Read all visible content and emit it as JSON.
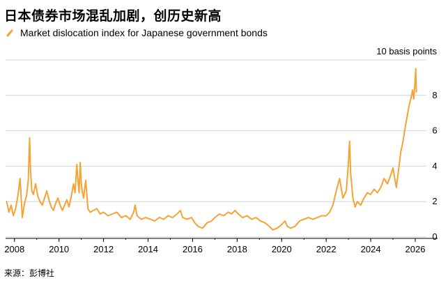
{
  "title": "日本债券市场混乱加剧，创历史新高",
  "legend": {
    "label": "Market dislocation index for Japanese government bonds",
    "color": "#f7a234"
  },
  "unit_label": "10 basis points",
  "source": "来源：彭博社",
  "chart_data": {
    "type": "line",
    "title": "日本债券市场混乱加剧，创历史新高",
    "xlabel": "",
    "ylabel": "10 basis points",
    "xlim": [
      2007.6,
      2026.5
    ],
    "ylim": [
      0,
      10
    ],
    "x_ticks": [
      "2008",
      "2010",
      "2012",
      "2014",
      "2016",
      "2018",
      "2020",
      "2022",
      "2024",
      "2026"
    ],
    "y_ticks": [
      "0",
      "2",
      "4",
      "6",
      "8"
    ],
    "grid": "horizontal",
    "series": [
      {
        "name": "Market dislocation index for Japanese government bonds",
        "color": "#f7a234",
        "points": [
          [
            2007.65,
            2.0
          ],
          [
            2007.75,
            1.4
          ],
          [
            2007.85,
            1.8
          ],
          [
            2007.95,
            1.2
          ],
          [
            2008.05,
            1.6
          ],
          [
            2008.15,
            2.3
          ],
          [
            2008.25,
            3.3
          ],
          [
            2008.35,
            1.1
          ],
          [
            2008.45,
            1.9
          ],
          [
            2008.55,
            2.4
          ],
          [
            2008.62,
            3.2
          ],
          [
            2008.68,
            5.6
          ],
          [
            2008.72,
            3.8
          ],
          [
            2008.78,
            2.6
          ],
          [
            2008.85,
            2.4
          ],
          [
            2008.95,
            3.0
          ],
          [
            2009.05,
            2.3
          ],
          [
            2009.15,
            2.0
          ],
          [
            2009.25,
            1.8
          ],
          [
            2009.35,
            2.2
          ],
          [
            2009.45,
            2.6
          ],
          [
            2009.55,
            2.1
          ],
          [
            2009.65,
            1.7
          ],
          [
            2009.75,
            1.5
          ],
          [
            2009.85,
            1.9
          ],
          [
            2009.95,
            2.2
          ],
          [
            2010.05,
            1.8
          ],
          [
            2010.15,
            1.5
          ],
          [
            2010.25,
            1.8
          ],
          [
            2010.35,
            2.1
          ],
          [
            2010.45,
            1.7
          ],
          [
            2010.55,
            2.3
          ],
          [
            2010.65,
            3.0
          ],
          [
            2010.72,
            2.5
          ],
          [
            2010.8,
            4.1
          ],
          [
            2010.85,
            3.2
          ],
          [
            2010.9,
            2.5
          ],
          [
            2010.95,
            4.2
          ],
          [
            2011.0,
            3.0
          ],
          [
            2011.05,
            2.5
          ],
          [
            2011.1,
            2.2
          ],
          [
            2011.2,
            3.2
          ],
          [
            2011.3,
            1.6
          ],
          [
            2011.4,
            1.4
          ],
          [
            2011.55,
            1.5
          ],
          [
            2011.7,
            1.6
          ],
          [
            2011.85,
            1.3
          ],
          [
            2012.0,
            1.4
          ],
          [
            2012.2,
            1.2
          ],
          [
            2012.4,
            1.3
          ],
          [
            2012.6,
            1.4
          ],
          [
            2012.8,
            1.1
          ],
          [
            2013.0,
            1.2
          ],
          [
            2013.2,
            1.0
          ],
          [
            2013.35,
            1.4
          ],
          [
            2013.42,
            1.8
          ],
          [
            2013.5,
            1.2
          ],
          [
            2013.7,
            1.0
          ],
          [
            2013.9,
            1.1
          ],
          [
            2014.1,
            1.0
          ],
          [
            2014.3,
            0.9
          ],
          [
            2014.5,
            1.1
          ],
          [
            2014.7,
            1.0
          ],
          [
            2014.9,
            1.2
          ],
          [
            2015.1,
            1.1
          ],
          [
            2015.3,
            1.3
          ],
          [
            2015.45,
            1.5
          ],
          [
            2015.55,
            1.1
          ],
          [
            2015.75,
            1.0
          ],
          [
            2015.95,
            1.1
          ],
          [
            2016.1,
            0.8
          ],
          [
            2016.25,
            0.6
          ],
          [
            2016.45,
            0.5
          ],
          [
            2016.65,
            0.8
          ],
          [
            2016.85,
            0.9
          ],
          [
            2017.0,
            1.1
          ],
          [
            2017.2,
            1.3
          ],
          [
            2017.4,
            1.2
          ],
          [
            2017.6,
            1.4
          ],
          [
            2017.75,
            1.3
          ],
          [
            2017.9,
            1.5
          ],
          [
            2018.05,
            1.3
          ],
          [
            2018.25,
            1.1
          ],
          [
            2018.45,
            1.2
          ],
          [
            2018.65,
            1.0
          ],
          [
            2018.85,
            1.1
          ],
          [
            2019.05,
            0.9
          ],
          [
            2019.25,
            0.8
          ],
          [
            2019.45,
            0.6
          ],
          [
            2019.6,
            0.4
          ],
          [
            2019.8,
            0.5
          ],
          [
            2020.0,
            0.7
          ],
          [
            2020.15,
            0.9
          ],
          [
            2020.25,
            0.6
          ],
          [
            2020.4,
            0.5
          ],
          [
            2020.6,
            0.6
          ],
          [
            2020.8,
            0.9
          ],
          [
            2021.0,
            1.0
          ],
          [
            2021.2,
            1.1
          ],
          [
            2021.4,
            1.0
          ],
          [
            2021.6,
            1.1
          ],
          [
            2021.8,
            1.2
          ],
          [
            2022.0,
            1.2
          ],
          [
            2022.15,
            1.4
          ],
          [
            2022.3,
            1.8
          ],
          [
            2022.45,
            2.6
          ],
          [
            2022.6,
            3.3
          ],
          [
            2022.75,
            2.2
          ],
          [
            2022.9,
            2.6
          ],
          [
            2023.0,
            4.2
          ],
          [
            2023.05,
            5.4
          ],
          [
            2023.1,
            3.6
          ],
          [
            2023.2,
            2.2
          ],
          [
            2023.3,
            1.7
          ],
          [
            2023.4,
            2.0
          ],
          [
            2023.55,
            1.8
          ],
          [
            2023.7,
            2.2
          ],
          [
            2023.85,
            2.5
          ],
          [
            2024.0,
            2.4
          ],
          [
            2024.15,
            2.7
          ],
          [
            2024.3,
            2.5
          ],
          [
            2024.45,
            2.8
          ],
          [
            2024.6,
            3.3
          ],
          [
            2024.75,
            3.0
          ],
          [
            2024.9,
            3.5
          ],
          [
            2025.0,
            3.9
          ],
          [
            2025.08,
            3.3
          ],
          [
            2025.15,
            2.8
          ],
          [
            2025.25,
            3.8
          ],
          [
            2025.35,
            4.8
          ],
          [
            2025.45,
            5.4
          ],
          [
            2025.55,
            6.2
          ],
          [
            2025.65,
            6.9
          ],
          [
            2025.72,
            7.4
          ],
          [
            2025.8,
            7.8
          ],
          [
            2025.88,
            8.3
          ],
          [
            2025.93,
            7.8
          ],
          [
            2025.98,
            8.6
          ],
          [
            2026.02,
            9.5
          ],
          [
            2026.05,
            8.2
          ]
        ]
      }
    ]
  }
}
